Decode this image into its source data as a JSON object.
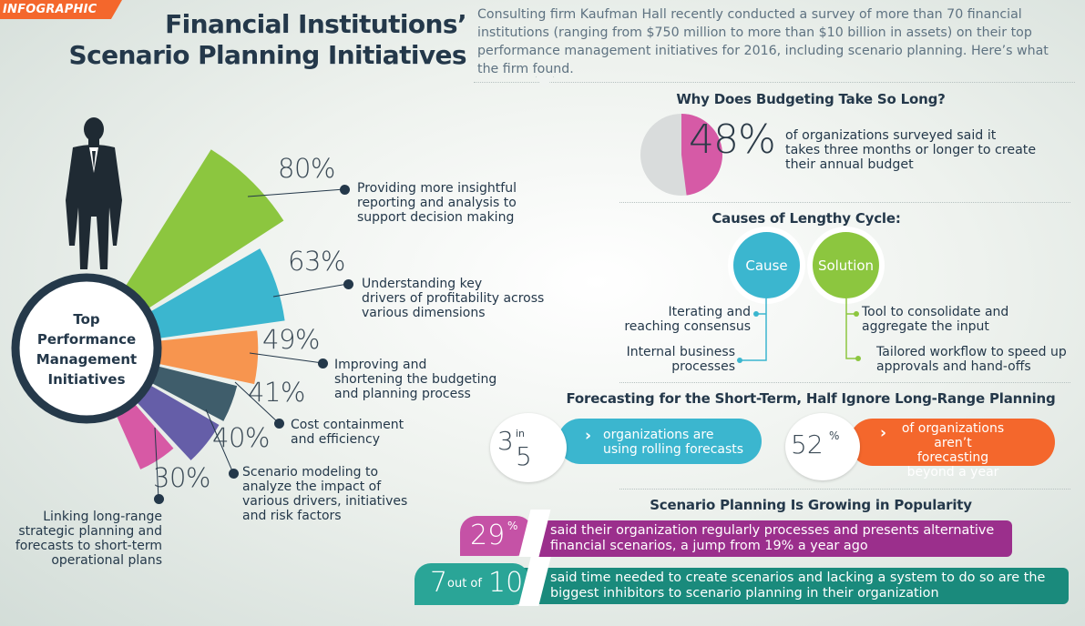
{
  "tag": "INFOGRAPHIC",
  "title": {
    "line1": "Financial Institutions’",
    "line2": "Scenario Planning Initiatives"
  },
  "intro": "Consulting firm Kaufman Hall recently conducted a survey of more than 70 financial institutions (ranging from $750 million to more than $10 billion in assets) on their top performance management initiatives for 2016, including scenario planning. Here’s what the firm found.",
  "initiatives": {
    "hub": {
      "line1": "Top",
      "line2": "Performance",
      "line3": "Management",
      "line4": "Initiatives"
    },
    "items": [
      {
        "pct": "80%",
        "value": 80,
        "color": "#8cc63f",
        "label": [
          "Providing more insightful",
          "reporting and analysis to",
          "support decision making"
        ]
      },
      {
        "pct": "63%",
        "value": 63,
        "color": "#3bb6cf",
        "label": [
          "Understanding key",
          "drivers of profitability across",
          "various dimensions"
        ]
      },
      {
        "pct": "49%",
        "value": 49,
        "color": "#f7954f",
        "label": [
          "Improving and",
          "shortening the budgeting",
          "and planning process"
        ]
      },
      {
        "pct": "41%",
        "value": 41,
        "color": "#3f5d6b",
        "label": [
          "Cost containment",
          "and efficiency"
        ]
      },
      {
        "pct": "40%",
        "value": 40,
        "color": "#655ea8",
        "label": [
          "Scenario modeling to",
          "analyze the impact of",
          "various drivers, initiatives",
          "and risk factors"
        ]
      },
      {
        "pct": "30%",
        "value": 30,
        "color": "#d759a5",
        "label": [
          "Linking long-range",
          "strategic planning and",
          "forecasts to short-term",
          "operational plans"
        ]
      }
    ]
  },
  "budgeting": {
    "title": "Why Does Budgeting Take So Long?",
    "pct": "48%",
    "value": 48,
    "text": [
      "of organizations surveyed said it",
      "takes three months or longer to create",
      "their annual budget"
    ],
    "colors": {
      "highlight": "#d65aa6",
      "rest": "#d9dcdc"
    }
  },
  "causes": {
    "title": "Causes of Lengthy Cycle:",
    "cause_label": "Cause",
    "solution_label": "Solution",
    "cause_items": [
      [
        "Iterating and",
        "reaching consensus"
      ],
      [
        "Internal business",
        "processes"
      ]
    ],
    "solution_items": [
      [
        "Tool to consolidate and",
        "aggregate the input"
      ],
      [
        "Tailored workflow to speed up",
        "approvals and hand-offs"
      ]
    ],
    "colors": {
      "cause": "#3bb6cf",
      "solution": "#8cc63f"
    }
  },
  "forecasting": {
    "title": "Forecasting for the Short-Term, Half Ignore Long-Range Planning",
    "left": {
      "num": "3",
      "in": "in",
      "den": "5",
      "text": [
        "organizations are",
        "using rolling forecasts"
      ],
      "color": "#3bb6cf"
    },
    "right": {
      "num": "52",
      "pct_sign": "%",
      "text": [
        "of organizations",
        "aren’t forecasting",
        "beyond a year"
      ],
      "color": "#f4672c"
    }
  },
  "scenario": {
    "title": "Scenario Planning Is Growing in Popularity",
    "row1": {
      "num": "29",
      "pct_sign": "%",
      "text": [
        "said their organization regularly processes and presents alternative",
        "financial scenarios, a jump from 19% a year ago"
      ],
      "color": "#9b2f8c",
      "badge_color": "#c552a6"
    },
    "row2": {
      "num": "7",
      "mid": "out of",
      "den": "10",
      "text": [
        "said time needed to create scenarios and lacking a system to do so are the",
        "biggest inhibitors to scenario planning in their organization"
      ],
      "color": "#1a8a7c",
      "badge_color": "#2aa597"
    }
  }
}
